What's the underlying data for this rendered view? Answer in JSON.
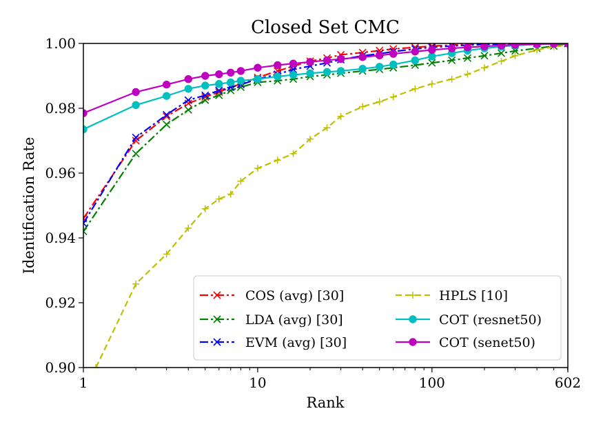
{
  "chart_data": {
    "type": "line",
    "title": "Closed Set CMC",
    "xlabel": "Rank",
    "ylabel": "Identification Rate",
    "xscale": "log",
    "xlim": [
      1,
      602
    ],
    "ylim": [
      0.9,
      1.0
    ],
    "xticks": [
      {
        "value": 1,
        "label": "1"
      },
      {
        "value": 10,
        "label": "10"
      },
      {
        "value": 100,
        "label": "100"
      },
      {
        "value": 602,
        "label": "602"
      }
    ],
    "yticks": [
      {
        "value": 0.9,
        "label": "0.90"
      },
      {
        "value": 0.92,
        "label": "0.92"
      },
      {
        "value": 0.94,
        "label": "0.94"
      },
      {
        "value": 0.96,
        "label": "0.96"
      },
      {
        "value": 0.98,
        "label": "0.98"
      },
      {
        "value": 1.0,
        "label": "1.00"
      }
    ],
    "grid": false,
    "legend_position": "lower-right",
    "series": [
      {
        "name": "COS (avg) [30]",
        "color": "#ff0000",
        "linestyle": "dashdot",
        "marker": "x",
        "x": [
          1,
          2,
          3,
          4,
          5,
          6,
          7,
          8,
          10,
          13,
          16,
          20,
          25,
          30,
          40,
          50,
          60,
          80,
          100,
          130,
          160,
          200,
          250,
          300,
          400,
          500,
          602
        ],
        "y": [
          0.946,
          0.97,
          0.9775,
          0.9815,
          0.9835,
          0.985,
          0.9865,
          0.9875,
          0.9895,
          0.9915,
          0.993,
          0.9945,
          0.9955,
          0.9965,
          0.9972,
          0.9978,
          0.9983,
          0.9988,
          0.9992,
          0.9995,
          0.9997,
          0.9998,
          0.9999,
          1.0,
          1.0,
          1.0,
          1.0
        ]
      },
      {
        "name": "LDA (avg) [30]",
        "color": "#008000",
        "linestyle": "dashdot",
        "marker": "x",
        "x": [
          1,
          2,
          3,
          4,
          5,
          6,
          7,
          8,
          10,
          13,
          16,
          20,
          25,
          30,
          40,
          50,
          60,
          80,
          100,
          130,
          160,
          200,
          250,
          300,
          400,
          500,
          602
        ],
        "y": [
          0.942,
          0.966,
          0.975,
          0.9795,
          0.9825,
          0.984,
          0.9855,
          0.9865,
          0.988,
          0.9885,
          0.989,
          0.9898,
          0.9903,
          0.9908,
          0.9915,
          0.992,
          0.9925,
          0.9933,
          0.994,
          0.9948,
          0.9955,
          0.9962,
          0.997,
          0.9977,
          0.9985,
          0.9992,
          1.0
        ]
      },
      {
        "name": "EVM (avg) [30]",
        "color": "#0000ff",
        "linestyle": "dashdot",
        "marker": "x",
        "x": [
          1,
          2,
          3,
          4,
          5,
          6,
          7,
          8,
          10,
          13,
          16,
          20,
          25,
          30,
          40,
          50,
          60,
          80,
          100,
          130,
          160,
          200,
          250,
          300,
          400,
          500,
          602
        ],
        "y": [
          0.9445,
          0.971,
          0.978,
          0.9825,
          0.984,
          0.9855,
          0.9865,
          0.9873,
          0.989,
          0.9905,
          0.992,
          0.993,
          0.994,
          0.995,
          0.9962,
          0.9968,
          0.9975,
          0.9983,
          0.9988,
          0.9992,
          0.9995,
          0.9997,
          0.9998,
          0.9999,
          1.0,
          1.0,
          1.0
        ]
      },
      {
        "name": "HPLS [10]",
        "color": "#bfbf00",
        "linestyle": "dashed",
        "marker": "+",
        "x": [
          1.18,
          2,
          3,
          4,
          5,
          6,
          7,
          8,
          10,
          13,
          16,
          20,
          25,
          30,
          40,
          50,
          60,
          80,
          100,
          130,
          160,
          200,
          250,
          300,
          400,
          500,
          602
        ],
        "y": [
          0.9,
          0.9258,
          0.935,
          0.943,
          0.949,
          0.952,
          0.9535,
          0.9575,
          0.9615,
          0.964,
          0.966,
          0.9705,
          0.974,
          0.9775,
          0.9805,
          0.982,
          0.9835,
          0.986,
          0.9875,
          0.989,
          0.9905,
          0.9925,
          0.9945,
          0.9962,
          0.998,
          0.999,
          0.9995
        ]
      },
      {
        "name": "COT (resnet50)",
        "color": "#00bfbf",
        "linestyle": "solid",
        "marker": "o",
        "x": [
          1,
          2,
          3,
          4,
          5,
          6,
          7,
          8,
          10,
          13,
          16,
          20,
          25,
          30,
          40,
          50,
          60,
          80,
          100,
          130,
          160,
          200,
          250,
          300,
          400,
          500,
          602
        ],
        "y": [
          0.9735,
          0.981,
          0.9838,
          0.986,
          0.987,
          0.9875,
          0.988,
          0.9885,
          0.989,
          0.9898,
          0.9903,
          0.9908,
          0.9912,
          0.9915,
          0.9922,
          0.9928,
          0.9935,
          0.9948,
          0.996,
          0.997,
          0.9978,
          0.9985,
          0.999,
          0.9994,
          0.9997,
          0.9999,
          1.0
        ]
      },
      {
        "name": "COT (senet50)",
        "color": "#bf00bf",
        "linestyle": "solid",
        "marker": "o",
        "x": [
          1,
          2,
          3,
          4,
          5,
          6,
          7,
          8,
          10,
          13,
          16,
          20,
          25,
          30,
          40,
          50,
          60,
          80,
          100,
          130,
          160,
          200,
          250,
          300,
          400,
          500,
          602
        ],
        "y": [
          0.9785,
          0.985,
          0.9873,
          0.989,
          0.99,
          0.9905,
          0.991,
          0.9915,
          0.9925,
          0.9933,
          0.9938,
          0.9943,
          0.9948,
          0.9952,
          0.9958,
          0.9963,
          0.9968,
          0.9975,
          0.998,
          0.9985,
          0.9988,
          0.9991,
          0.9994,
          0.9996,
          0.9998,
          0.9999,
          1.0
        ]
      }
    ]
  }
}
